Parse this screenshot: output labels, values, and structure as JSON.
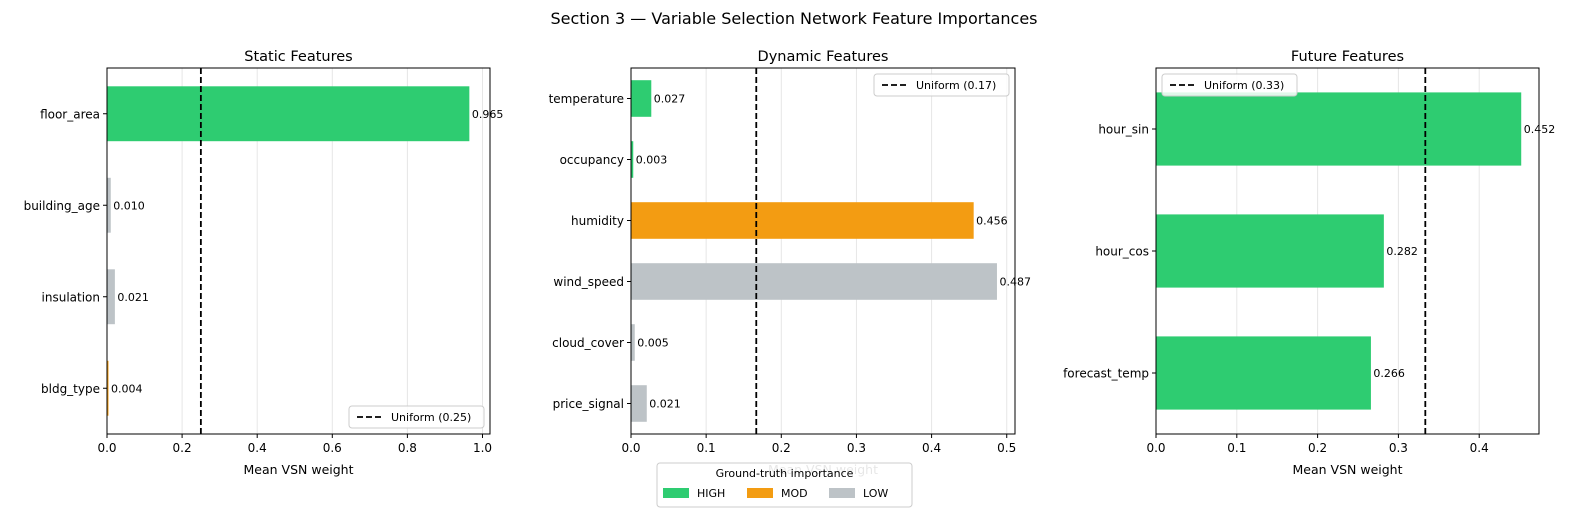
{
  "figure": {
    "suptitle": "Section 3 — Variable Selection Network Feature Importances"
  },
  "colors": {
    "HIGH": "#2ecc71",
    "MOD": "#f39c12",
    "LOW": "#bdc3c7",
    "uniform_line": "#000000",
    "grid": "#e6e6e6"
  },
  "legend_global": {
    "title": "Ground-truth importance",
    "items": [
      {
        "label": "HIGH",
        "color": "#2ecc71"
      },
      {
        "label": "MOD",
        "color": "#f39c12"
      },
      {
        "label": "LOW",
        "color": "#bdc3c7"
      }
    ]
  },
  "chart_data": [
    {
      "type": "bar",
      "orientation": "horizontal",
      "title": "Static Features",
      "xlabel": "Mean VSN weight",
      "xlim": [
        0,
        1.02
      ],
      "xticks": [
        "0.0",
        "0.2",
        "0.4",
        "0.6",
        "0.8",
        "1.0"
      ],
      "grid": "x",
      "categories": [
        "floor_area",
        "building_age",
        "insulation",
        "bldg_type"
      ],
      "values": [
        0.965,
        0.01,
        0.021,
        0.004
      ],
      "value_labels": [
        "0.965",
        "0.010",
        "0.021",
        "0.004"
      ],
      "importance": [
        "HIGH",
        "LOW",
        "LOW",
        "MOD"
      ],
      "uniform": {
        "value": 0.25,
        "label": "Uniform (0.25)"
      },
      "legend_placement": "lower-right"
    },
    {
      "type": "bar",
      "orientation": "horizontal",
      "title": "Dynamic Features",
      "xlabel": "Mean VSN weight",
      "xlim": [
        0,
        0.511
      ],
      "xticks": [
        "0.0",
        "0.1",
        "0.2",
        "0.3",
        "0.4",
        "0.5"
      ],
      "grid": "x",
      "categories": [
        "temperature",
        "occupancy",
        "humidity",
        "wind_speed",
        "cloud_cover",
        "price_signal"
      ],
      "values": [
        0.027,
        0.003,
        0.456,
        0.487,
        0.005,
        0.021
      ],
      "value_labels": [
        "0.027",
        "0.003",
        "0.456",
        "0.487",
        "0.005",
        "0.021"
      ],
      "importance": [
        "HIGH",
        "HIGH",
        "MOD",
        "LOW",
        "LOW",
        "LOW"
      ],
      "uniform": {
        "value": 0.1667,
        "label": "Uniform (0.17)"
      },
      "legend_placement": "upper-right"
    },
    {
      "type": "bar",
      "orientation": "horizontal",
      "title": "Future Features",
      "xlabel": "Mean VSN weight",
      "xlim": [
        0,
        0.474
      ],
      "xticks": [
        "0.0",
        "0.1",
        "0.2",
        "0.3",
        "0.4"
      ],
      "grid": "x",
      "categories": [
        "hour_sin",
        "hour_cos",
        "forecast_temp"
      ],
      "values": [
        0.452,
        0.282,
        0.266
      ],
      "value_labels": [
        "0.452",
        "0.282",
        "0.266"
      ],
      "importance": [
        "HIGH",
        "HIGH",
        "HIGH"
      ],
      "uniform": {
        "value": 0.3333,
        "label": "Uniform (0.33)"
      },
      "legend_placement": "upper-left"
    }
  ]
}
